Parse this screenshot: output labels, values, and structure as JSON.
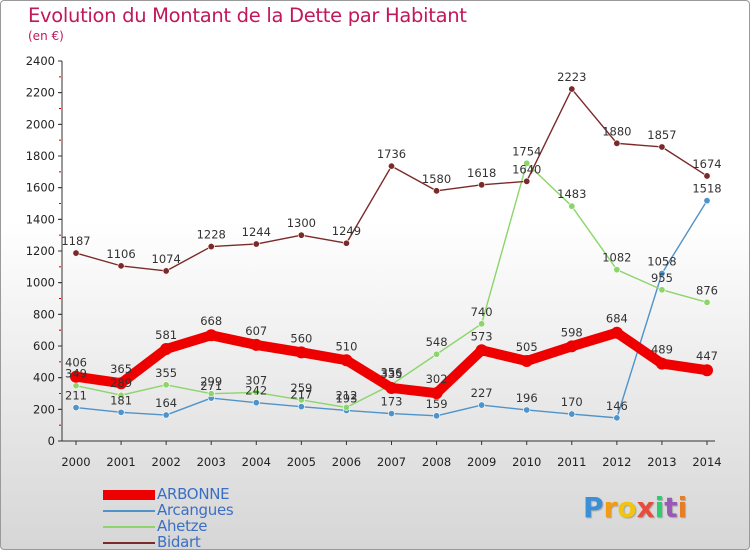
{
  "title": "Evolution du Montant de la Dette par Habitant",
  "subtitle": "(en €)",
  "logo": {
    "letters": [
      "P",
      "r",
      "o",
      "x",
      "i",
      "t",
      "i"
    ],
    "colors": [
      "#3a8fd6",
      "#f39c12",
      "#f1c40f",
      "#e74c3c",
      "#2ecc71",
      "#9b59b6",
      "#e67e22"
    ]
  },
  "chart_data": {
    "type": "line",
    "title": "Evolution du Montant de la Dette par Habitant",
    "subtitle": "(en €)",
    "xlabel": "",
    "ylabel": "",
    "x": [
      2000,
      2001,
      2002,
      2003,
      2004,
      2005,
      2006,
      2007,
      2008,
      2009,
      2010,
      2011,
      2012,
      2013,
      2014
    ],
    "ylim": [
      0,
      2400
    ],
    "yticks": [
      0,
      200,
      400,
      600,
      800,
      1000,
      1200,
      1400,
      1600,
      1800,
      2000,
      2200,
      2400
    ],
    "grid": false,
    "legend_position": "bottom-left",
    "series": [
      {
        "name": "ARBONNE",
        "color": "#ee0000",
        "values": [
          406,
          365,
          581,
          668,
          607,
          560,
          510,
          335,
          302,
          573,
          505,
          598,
          684,
          489,
          447
        ]
      },
      {
        "name": "Arcangues",
        "color": "#4f93c9",
        "values": [
          211,
          181,
          164,
          271,
          242,
          217,
          193,
          173,
          159,
          227,
          196,
          170,
          146,
          1058,
          1518
        ]
      },
      {
        "name": "Ahetze",
        "color": "#8cd56a",
        "values": [
          349,
          289,
          355,
          299,
          307,
          259,
          212,
          356,
          548,
          740,
          1754,
          1483,
          1082,
          955,
          876
        ]
      },
      {
        "name": "Bidart",
        "color": "#7b2a2a",
        "values": [
          1187,
          1106,
          1074,
          1228,
          1244,
          1300,
          1249,
          1736,
          1580,
          1618,
          1640,
          2223,
          1880,
          1857,
          1674
        ]
      }
    ]
  }
}
